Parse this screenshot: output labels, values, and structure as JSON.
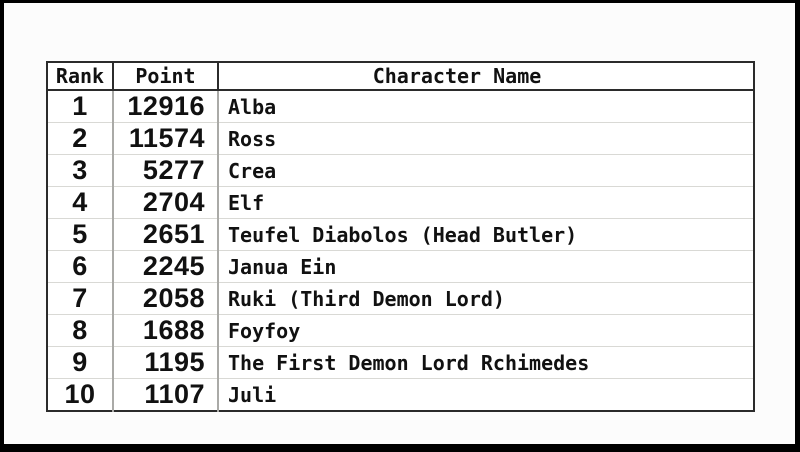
{
  "colors": {
    "page_background": "#fcfcfc",
    "frame": "#000000",
    "table_border": "#2b2b2b",
    "header_rule": "#2b2b2b",
    "column_divider": "#aaaaa7",
    "row_separator": "#d9d9d5",
    "text": "#111111"
  },
  "table": {
    "columns": [
      {
        "key": "rank",
        "label": "Rank"
      },
      {
        "key": "point",
        "label": "Point"
      },
      {
        "key": "name",
        "label": "Character Name"
      }
    ],
    "rows": [
      {
        "rank": "1",
        "point": "12916",
        "name": "Alba"
      },
      {
        "rank": "2",
        "point": "11574",
        "name": "Ross"
      },
      {
        "rank": "3",
        "point": "5277",
        "name": "Crea"
      },
      {
        "rank": "4",
        "point": "2704",
        "name": "Elf"
      },
      {
        "rank": "5",
        "point": "2651",
        "name": "Teufel Diabolos (Head Butler)"
      },
      {
        "rank": "6",
        "point": "2245",
        "name": "Janua Ein"
      },
      {
        "rank": "7",
        "point": "2058",
        "name": "Ruki (Third Demon Lord)"
      },
      {
        "rank": "8",
        "point": "1688",
        "name": "Foyfoy"
      },
      {
        "rank": "9",
        "point": "1195",
        "name": "The First Demon Lord Rchimedes"
      },
      {
        "rank": "10",
        "point": "1107",
        "name": "Juli"
      }
    ]
  },
  "chart_data": {
    "type": "table",
    "title": "",
    "columns": [
      "Rank",
      "Point",
      "Character Name"
    ],
    "categories": [
      "Alba",
      "Ross",
      "Crea",
      "Elf",
      "Teufel Diabolos (Head Butler)",
      "Janua Ein",
      "Ruki (Third Demon Lord)",
      "Foyfoy",
      "The First Demon Lord Rchimedes",
      "Juli"
    ],
    "ranks": [
      1,
      2,
      3,
      4,
      5,
      6,
      7,
      8,
      9,
      10
    ],
    "values": [
      12916,
      11574,
      5277,
      2704,
      2651,
      2245,
      2058,
      1688,
      1195,
      1107
    ]
  }
}
